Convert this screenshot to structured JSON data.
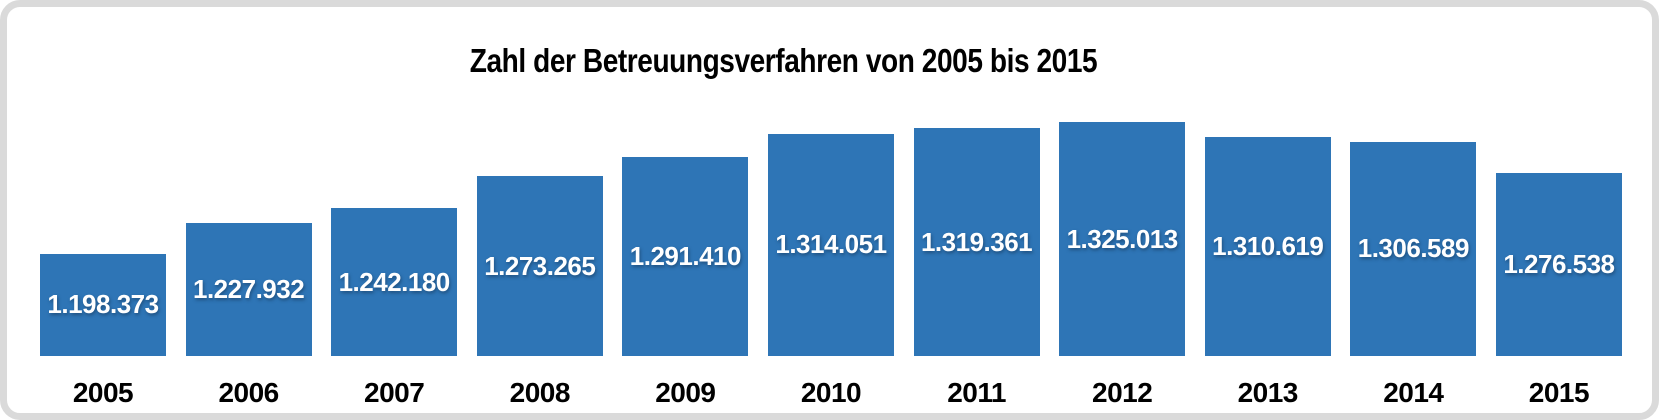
{
  "frame": {
    "background_color": "#FFFFFF",
    "border_color": "#DADADA"
  },
  "chart_data": {
    "type": "bar",
    "title": "Zahl der Betreuungsverfahren von 2005 bis 2015",
    "categories": [
      "2005",
      "2006",
      "2007",
      "2008",
      "2009",
      "2010",
      "2011",
      "2012",
      "2013",
      "2014",
      "2015"
    ],
    "values": [
      1198373,
      1227932,
      1242180,
      1273265,
      1291410,
      1314051,
      1319361,
      1325013,
      1310619,
      1306589,
      1276538
    ],
    "value_labels": [
      "1.198.373",
      "1.227.932",
      "1.242.180",
      "1.273.265",
      "1.291.410",
      "1.314.051",
      "1.319.361",
      "1.325.013",
      "1.310.619",
      "1.306.589",
      "1.276.538"
    ],
    "bar_color": "#2E75B6",
    "value_label_color": "#FFFFFF",
    "axis_label_color": "#000000",
    "xlabel": "",
    "ylabel": "",
    "ylim": [
      1100000,
      1335000
    ],
    "grid": false,
    "legend": false,
    "axes_visible": false
  }
}
